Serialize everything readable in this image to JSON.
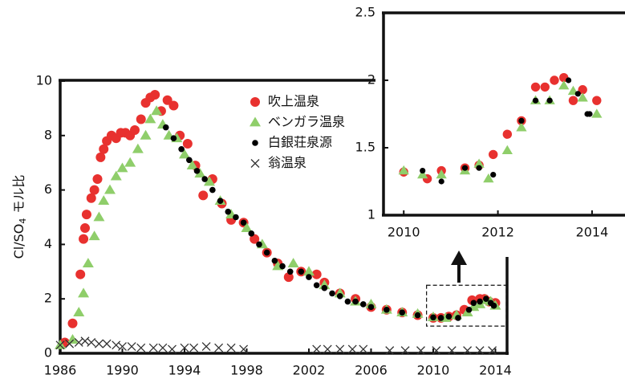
{
  "chart_data": [
    {
      "type": "scatter",
      "y_label": [
        "Cl/SO",
        "4",
        "モル比"
      ],
      "xlim": [
        1986,
        2014.75
      ],
      "ylim": [
        0,
        10
      ],
      "xticks": [
        1986,
        1990,
        1994,
        1998,
        2002,
        2006,
        2010,
        2014
      ],
      "yticks": [
        0,
        2,
        4,
        6,
        8,
        10
      ],
      "legend": "top-right",
      "series": [
        {
          "name": "吹上温泉",
          "color": "#e8312f",
          "marker": "circle",
          "x": [
            1986.3,
            1986.8,
            1987.3,
            1987.5,
            1987.6,
            1987.7,
            1988,
            1988.2,
            1988.4,
            1988.6,
            1988.8,
            1989,
            1989.3,
            1989.6,
            1989.9,
            1990.2,
            1990.5,
            1990.8,
            1991.2,
            1991.5,
            1991.8,
            1992.1,
            1992.5,
            1992.9,
            1993.3,
            1993.7,
            1994.2,
            1994.7,
            1995.2,
            1995.8,
            1996.4,
            1997,
            1997.8,
            1998.5,
            1999.3,
            2000,
            2000.7,
            2001.5,
            2002.5,
            2003,
            2004,
            2005,
            2006,
            2007,
            2008,
            2009,
            2010,
            2010.5,
            2011,
            2011.5,
            2012,
            2012.5,
            2013,
            2013.3,
            2013.6,
            2014
          ],
          "values": [
            0.4,
            1.1,
            2.9,
            4.2,
            4.6,
            5.1,
            5.7,
            6.0,
            6.4,
            7.2,
            7.5,
            7.8,
            8.0,
            7.9,
            8.1,
            8.1,
            8.0,
            8.2,
            8.6,
            9.2,
            9.4,
            9.5,
            8.9,
            9.3,
            9.1,
            8.0,
            7.7,
            6.9,
            5.8,
            6.4,
            5.5,
            4.9,
            4.8,
            4.2,
            3.7,
            3.3,
            2.8,
            3.0,
            2.9,
            2.6,
            2.2,
            2.0,
            1.7,
            1.6,
            1.5,
            1.4,
            1.3,
            1.3,
            1.35,
            1.4,
            1.6,
            1.95,
            2.0,
            2.0,
            1.9,
            1.85
          ]
        },
        {
          "name": "ベンガラ温泉",
          "color": "#8fce6a",
          "marker": "triangle",
          "x": [
            1986,
            1986.8,
            1987.2,
            1987.5,
            1987.8,
            1988.2,
            1988.5,
            1988.8,
            1989.2,
            1989.6,
            1990,
            1990.5,
            1991,
            1991.5,
            1991.8,
            1992.2,
            1992.6,
            1993,
            1993.5,
            1994,
            1994.5,
            1995,
            1995.6,
            1996.3,
            1997,
            1998,
            1999,
            2000,
            2001,
            2002,
            2003,
            2004,
            2005,
            2006,
            2007,
            2008,
            2009,
            2010,
            2010.8,
            2011.5,
            2012.2,
            2012.6,
            2013,
            2013.4,
            2013.7,
            2014
          ],
          "values": [
            0.3,
            0.5,
            1.5,
            2.2,
            3.3,
            4.3,
            5.0,
            5.6,
            6.0,
            6.5,
            6.8,
            7.0,
            7.5,
            8.0,
            8.6,
            8.9,
            8.4,
            8.0,
            7.9,
            7.3,
            6.9,
            6.6,
            6.3,
            5.6,
            5.1,
            4.6,
            4.0,
            3.2,
            3.3,
            3.0,
            2.5,
            2.2,
            1.9,
            1.8,
            1.6,
            1.5,
            1.45,
            1.33,
            1.3,
            1.4,
            1.5,
            1.7,
            1.8,
            1.95,
            1.9,
            1.75
          ]
        },
        {
          "name": "白銀荘泉源",
          "color": "#000000",
          "marker": "dot",
          "x": [
            1992.8,
            1993.3,
            1993.8,
            1994.3,
            1994.8,
            1995.3,
            1995.8,
            1996.3,
            1996.8,
            1997.3,
            1997.8,
            1998.3,
            1998.8,
            1999.3,
            1999.8,
            2000.3,
            2000.8,
            2001.5,
            2002,
            2002.5,
            2003,
            2003.5,
            2004,
            2004.5,
            2005,
            2005.5,
            2006,
            2007,
            2008,
            2009,
            2010,
            2010.5,
            2011,
            2011.6,
            2012.3,
            2012.6,
            2013,
            2013.4,
            2013.7,
            2013.9
          ],
          "values": [
            8.3,
            7.9,
            7.5,
            7.1,
            6.7,
            6.4,
            6.0,
            5.6,
            5.2,
            5.0,
            4.8,
            4.4,
            4.0,
            3.7,
            3.4,
            3.2,
            3.0,
            3.0,
            2.8,
            2.5,
            2.4,
            2.2,
            2.1,
            1.9,
            1.9,
            1.8,
            1.7,
            1.6,
            1.5,
            1.4,
            1.32,
            1.3,
            1.35,
            1.3,
            1.6,
            1.85,
            1.9,
            2.0,
            1.85,
            1.75
          ]
        },
        {
          "name": "翁温泉",
          "color": "#333333",
          "marker": "cross",
          "x": [
            1986,
            1986.6,
            1987.2,
            1987.6,
            1988,
            1988.5,
            1989,
            1989.6,
            1990,
            1990.6,
            1991.2,
            1992,
            1992.6,
            1993.2,
            1994,
            1994.6,
            1995.4,
            1996.2,
            1997,
            1997.8,
            2002.5,
            2003.2,
            2004,
            2004.8,
            2005.5,
            2007.2,
            2008.2,
            2009.2,
            2010.2,
            2011.2,
            2012.2,
            2013,
            2013.8
          ],
          "values": [
            0.3,
            0.35,
            0.4,
            0.45,
            0.4,
            0.35,
            0.35,
            0.3,
            0.25,
            0.25,
            0.2,
            0.2,
            0.2,
            0.15,
            0.2,
            0.2,
            0.25,
            0.2,
            0.2,
            0.15,
            0.15,
            0.15,
            0.15,
            0.15,
            0.15,
            0.1,
            0.1,
            0.1,
            0.1,
            0.1,
            0.1,
            0.1,
            0.1
          ]
        }
      ]
    },
    {
      "type": "scatter",
      "xlim": [
        2009.57,
        2014.7
      ],
      "ylim": [
        1,
        2.5
      ],
      "xticks": [
        2010,
        2012,
        2014
      ],
      "yticks": [
        1,
        1.5,
        2,
        2.5
      ],
      "series": [
        {
          "color": "#e8312f",
          "marker": "circle",
          "x": [
            2010,
            2010.5,
            2010.8,
            2011.3,
            2011.6,
            2011.9,
            2012.2,
            2012.5,
            2012.8,
            2013,
            2013.2,
            2013.4,
            2013.6,
            2013.8,
            2014.1
          ],
          "values": [
            1.32,
            1.27,
            1.33,
            1.35,
            1.37,
            1.45,
            1.6,
            1.7,
            1.95,
            1.95,
            2.0,
            2.02,
            1.85,
            1.93,
            1.85
          ]
        },
        {
          "color": "#8fce6a",
          "marker": "triangle",
          "x": [
            2010,
            2010.4,
            2010.8,
            2011.3,
            2011.6,
            2011.8,
            2012.2,
            2012.5,
            2012.8,
            2013.1,
            2013.4,
            2013.6,
            2013.8,
            2014.1
          ],
          "values": [
            1.33,
            1.3,
            1.3,
            1.33,
            1.38,
            1.27,
            1.48,
            1.65,
            1.85,
            1.85,
            1.96,
            1.92,
            1.87,
            1.75
          ]
        },
        {
          "color": "#000000",
          "marker": "dot",
          "x": [
            2010.4,
            2010.8,
            2011.3,
            2011.6,
            2011.9,
            2012.5,
            2012.8,
            2013.1,
            2013.5,
            2013.7,
            2013.9,
            2013.95
          ],
          "values": [
            1.33,
            1.25,
            1.35,
            1.35,
            1.3,
            1.7,
            1.85,
            1.85,
            2.0,
            1.9,
            1.75,
            1.75
          ]
        }
      ]
    }
  ]
}
